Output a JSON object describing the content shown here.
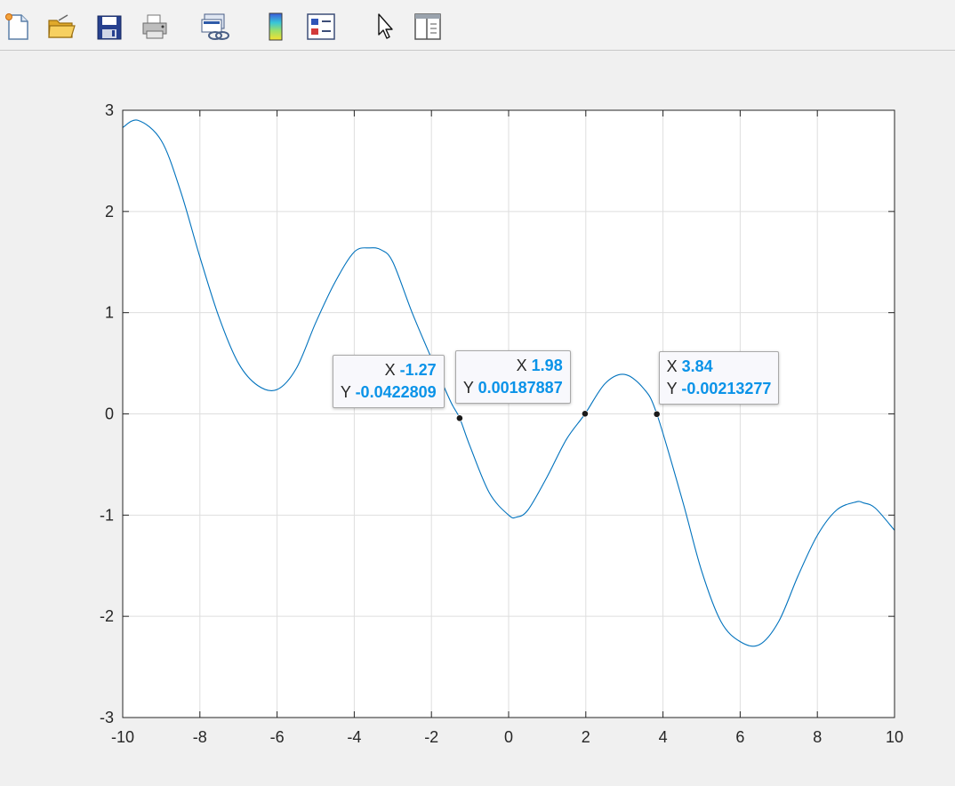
{
  "toolbar": {
    "buttons": [
      {
        "name": "new-figure",
        "icon": "new-file-icon"
      },
      {
        "name": "open-file",
        "icon": "folder-open-icon"
      },
      {
        "name": "save-figure",
        "icon": "save-disk-icon"
      },
      {
        "name": "print-figure",
        "icon": "printer-icon"
      },
      {
        "name": "link-plot",
        "icon": "link-plot-icon"
      },
      {
        "name": "insert-colorbar",
        "icon": "colorbar-icon"
      },
      {
        "name": "insert-legend",
        "icon": "legend-icon"
      },
      {
        "name": "edit-plot",
        "icon": "pointer-icon"
      },
      {
        "name": "property-inspector",
        "icon": "panel-icon"
      }
    ]
  },
  "colors": {
    "line": "#0072bd",
    "datatip_value": "#0a93e8",
    "grid": "#dedede",
    "axes": "#262626"
  },
  "chart_data": {
    "type": "line",
    "title": "",
    "xlabel": "",
    "ylabel": "",
    "xlim": [
      -10,
      10
    ],
    "ylim": [
      -3,
      3
    ],
    "xticks": [
      -10,
      -8,
      -6,
      -4,
      -2,
      0,
      2,
      4,
      6,
      8,
      10
    ],
    "yticks": [
      -3,
      -2,
      -1,
      0,
      1,
      2,
      3
    ],
    "xtick_labels": [
      "-10",
      "-8",
      "-6",
      "-4",
      "-2",
      "0",
      "2",
      "4",
      "6",
      "8",
      "10"
    ],
    "ytick_labels": [
      "-3",
      "-2",
      "-1",
      "0",
      "1",
      "2",
      "3"
    ],
    "grid": true,
    "series": [
      {
        "x": [
          -10,
          -9.6,
          -9,
          -8.5,
          -8,
          -7.5,
          -7,
          -6.5,
          -6,
          -5.5,
          -5,
          -4.5,
          -4,
          -3.6,
          -3.3,
          -3,
          -2.5,
          -2,
          -1.5,
          -1.27,
          -1,
          -0.5,
          0,
          0.2,
          0.5,
          1,
          1.5,
          1.98,
          2.5,
          3,
          3.5,
          3.84,
          4.5,
          5,
          5.5,
          6,
          6.5,
          7,
          7.5,
          8,
          8.5,
          9,
          9.2,
          9.5,
          10
        ],
        "y": [
          2.83,
          2.9,
          2.7,
          2.2,
          1.55,
          0.95,
          0.5,
          0.28,
          0.24,
          0.45,
          0.9,
          1.3,
          1.6,
          1.64,
          1.62,
          1.5,
          1.0,
          0.55,
          0.12,
          -0.04,
          -0.32,
          -0.78,
          -1.0,
          -1.02,
          -0.95,
          -0.62,
          -0.25,
          0.0,
          0.3,
          0.39,
          0.25,
          0.0,
          -0.85,
          -1.55,
          -2.05,
          -2.25,
          -2.28,
          -2.05,
          -1.6,
          -1.2,
          -0.95,
          -0.87,
          -0.88,
          -0.93,
          -1.15
        ]
      }
    ],
    "datatips": [
      {
        "x": -1.27,
        "y": -0.0422809,
        "x_label": "X",
        "y_label": "Y",
        "x_text": "-1.27",
        "y_text": "-0.0422809"
      },
      {
        "x": 1.98,
        "y": 0.00187887,
        "x_label": "X",
        "y_label": "Y",
        "x_text": "1.98",
        "y_text": "0.00187887"
      },
      {
        "x": 3.84,
        "y": -0.00213277,
        "x_label": "X",
        "y_label": "Y",
        "x_text": "3.84",
        "y_text": "-0.00213277"
      }
    ]
  }
}
